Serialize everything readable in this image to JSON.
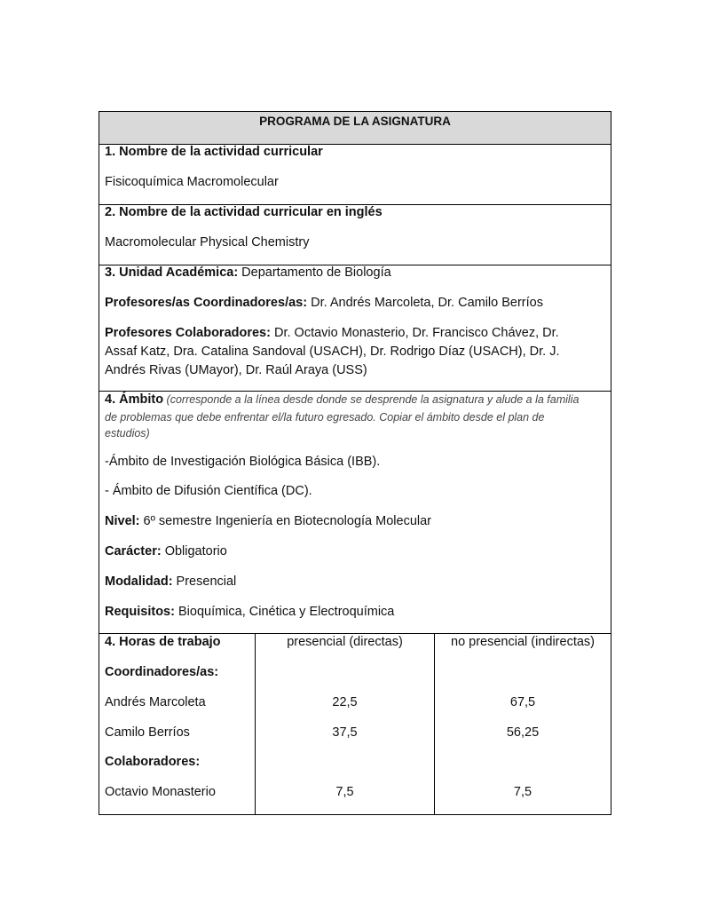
{
  "header": "PROGRAMA DE LA ASIGNATURA",
  "s1": {
    "label": "1. Nombre de la actividad curricular",
    "value": "Fisicoquímica Macromolecular"
  },
  "s2": {
    "label": "2. Nombre de la actividad curricular en inglés",
    "value": "Macromolecular Physical Chemistry"
  },
  "s3": {
    "unidad_label": "3. Unidad Académica:",
    "unidad_value": " Departamento de Biología",
    "coord_label": "Profesores/as Coordinadores/as:",
    "coord_value": " Dr. Andrés Marcoleta, Dr. Camilo Berríos",
    "colab_label": "Profesores Colaboradores:",
    "colab_line1": " Dr. Octavio Monasterio, Dr. Francisco Chávez, Dr.",
    "colab_line2": "Assaf Katz, Dra. Catalina Sandoval (USACH), Dr. Rodrigo Díaz (USACH), Dr. J.",
    "colab_line3": "Andrés Rivas (UMayor), Dr. Raúl Araya (USS)"
  },
  "s4": {
    "label": "4. Ámbito",
    "note1": " (corresponde a la línea desde donde se desprende la asignatura y alude a la familia",
    "note2": "de problemas que debe enfrentar el/la futuro egresado. Copiar el ámbito desde el plan de",
    "note3": "estudios)",
    "ambito1": "-Ámbito de Investigación Biológica Básica (IBB).",
    "ambito2": "- Ámbito de Difusión Científica (DC).",
    "nivel_label": "Nivel:",
    "nivel_value": " 6º semestre Ingeniería en Biotecnología Molecular",
    "caracter_label": "Carácter:",
    "caracter_value": " Obligatorio",
    "modalidad_label": "Modalidad:",
    "modalidad_value": " Presencial",
    "requisitos_label": "Requisitos:",
    "requisitos_value": " Bioquímica, Cinética y Electroquímica"
  },
  "hours": {
    "label": "4. Horas de trabajo",
    "col1": "presencial (directas)",
    "col2": "no presencial (indirectas)",
    "coord_heading": "Coordinadores/as:",
    "colab_heading": "Colaboradores:",
    "rows": [
      {
        "name": "Andrés Marcoleta",
        "direct": "22,5",
        "indirect": "67,5"
      },
      {
        "name": "Camilo Berríos",
        "direct": "37,5",
        "indirect": "56,25"
      },
      {
        "name": "Octavio Monasterio",
        "direct": "7,5",
        "indirect": "7,5"
      }
    ]
  }
}
